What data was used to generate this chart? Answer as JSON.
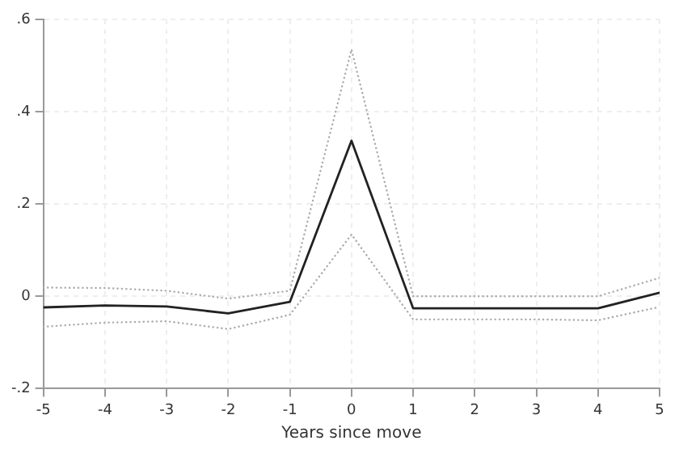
{
  "chart_data": {
    "type": "line",
    "xlabel": "Years since move",
    "x": [
      -5,
      -4,
      -3,
      -2,
      -1,
      0,
      1,
      2,
      3,
      4,
      5
    ],
    "xlim": [
      -5,
      5
    ],
    "xticks": [
      -5,
      -4,
      -3,
      -2,
      -1,
      0,
      1,
      2,
      3,
      4,
      5
    ],
    "ylim": [
      -0.2,
      0.6
    ],
    "yticks": [
      {
        "value": -0.2,
        "label": "-.2"
      },
      {
        "value": 0,
        "label": "0"
      },
      {
        "value": 0.2,
        "label": ".2"
      },
      {
        "value": 0.4,
        "label": ".4"
      },
      {
        "value": 0.6,
        "label": ".6"
      }
    ],
    "grid": true,
    "legend": false,
    "marker": "none",
    "series": [
      {
        "color": "#acacac",
        "line_style": "dotted",
        "values": [
          0.019,
          0.018,
          0.012,
          -0.005,
          0.012,
          0.535,
          0,
          0,
          0,
          0,
          0.04
        ]
      },
      {
        "color": "#222222",
        "line_style": "solid",
        "values": [
          -0.024,
          -0.02,
          -0.022,
          -0.037,
          -0.012,
          0.337,
          -0.026,
          -0.026,
          -0.026,
          -0.026,
          0.008
        ]
      },
      {
        "color": "#acacac",
        "line_style": "dotted",
        "values": [
          -0.066,
          -0.057,
          -0.054,
          -0.071,
          -0.04,
          0.134,
          -0.05,
          -0.05,
          -0.05,
          -0.052,
          -0.023
        ]
      }
    ]
  }
}
